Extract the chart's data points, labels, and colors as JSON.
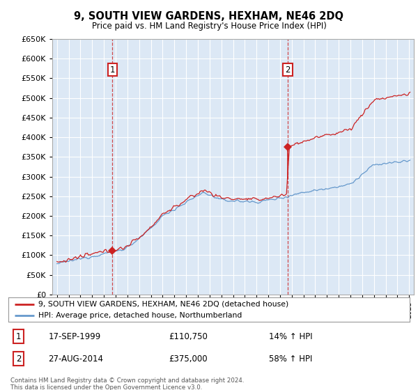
{
  "title": "9, SOUTH VIEW GARDENS, HEXHAM, NE46 2DQ",
  "subtitle": "Price paid vs. HM Land Registry's House Price Index (HPI)",
  "background_color": "#dce8f5",
  "plot_bg_color": "#dce8f5",
  "sale1_date": "17-SEP-1999",
  "sale1_price": 110750,
  "sale1_label": "1",
  "sale1_hpi": "14% ↑ HPI",
  "sale2_date": "27-AUG-2014",
  "sale2_price": 375000,
  "sale2_label": "2",
  "sale2_hpi": "58% ↑ HPI",
  "legend_line1": "9, SOUTH VIEW GARDENS, HEXHAM, NE46 2DQ (detached house)",
  "legend_line2": "HPI: Average price, detached house, Northumberland",
  "footer": "Contains HM Land Registry data © Crown copyright and database right 2024.\nThis data is licensed under the Open Government Licence v3.0.",
  "red_color": "#cc2222",
  "blue_color": "#6699cc",
  "ylim": [
    0,
    650000
  ],
  "ytick_step": 50000,
  "sale1_year": 1999.72,
  "sale2_year": 2014.65
}
